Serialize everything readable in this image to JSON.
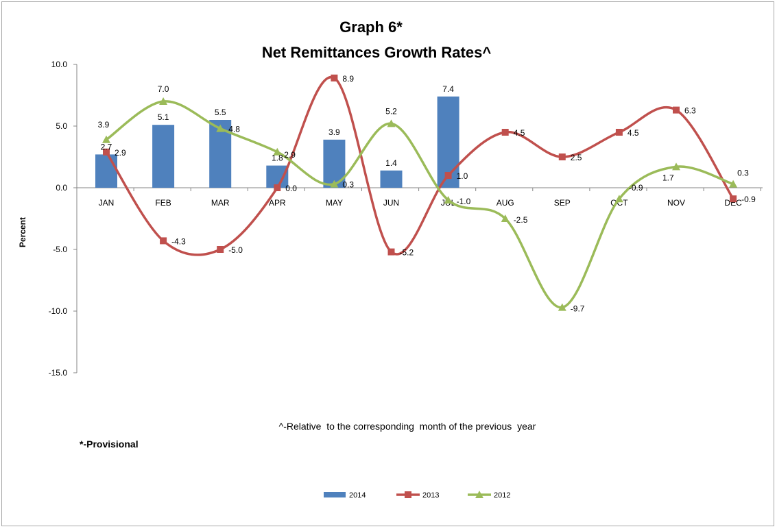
{
  "chart_data": {
    "type": "bar",
    "title": "Graph 6*",
    "subtitle": "Net Remittances Growth Rates^",
    "xlabel": "",
    "ylabel": "Percent",
    "ylim": [
      -15,
      10
    ],
    "yticks": [
      "10.0",
      "5.0",
      "0.0",
      "-5.0",
      "-10.0",
      "-15.0"
    ],
    "ytick_values": [
      10,
      5,
      0,
      -5,
      -10,
      -15
    ],
    "categories": [
      "JAN",
      "FEB",
      "MAR",
      "APR",
      "MAY",
      "JUN",
      "JUL",
      "AUG",
      "SEP",
      "OCT",
      "NOV",
      "DEC"
    ],
    "grid": false,
    "legend_position": "bottom",
    "series": [
      {
        "name": "2014",
        "type": "bar",
        "color": "#4f81bd",
        "values": [
          2.7,
          5.1,
          5.5,
          1.8,
          3.9,
          1.4,
          7.4,
          null,
          null,
          null,
          null,
          null
        ],
        "labels": [
          "2.7",
          "5.1",
          "5.5",
          "1.8",
          "3.9",
          "1.4",
          "7.4",
          null,
          null,
          null,
          null,
          null
        ]
      },
      {
        "name": "2013",
        "type": "line",
        "marker": "square",
        "color": "#c0504d",
        "values": [
          2.9,
          -4.3,
          -5.0,
          0.0,
          8.9,
          -5.2,
          1.0,
          4.5,
          2.5,
          4.5,
          6.3,
          -0.9
        ],
        "labels": [
          "2.9",
          "-4.3",
          "-5.0",
          "0.0",
          "8.9",
          "-5.2",
          "1.0",
          "4.5",
          "2.5",
          "4.5",
          "6.3",
          "-0.9"
        ]
      },
      {
        "name": "2012",
        "type": "line",
        "marker": "triangle",
        "color": "#9bbb59",
        "values": [
          3.9,
          7.0,
          4.8,
          2.9,
          0.3,
          5.2,
          -1.0,
          -2.5,
          -9.7,
          -0.9,
          1.7,
          0.3
        ],
        "labels": [
          "3.9",
          "7.0",
          "4.8",
          "2.9",
          "0.3",
          "5.2",
          "-1.0",
          "-2.5",
          "-9.7",
          "-0.9",
          "1.7",
          "0.3"
        ]
      }
    ],
    "annotations": [
      "^-Relative  to the corresponding  month of the previous  year",
      "*-Provisional"
    ]
  }
}
